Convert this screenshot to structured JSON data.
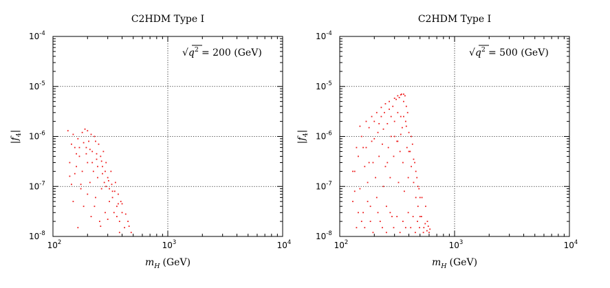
{
  "chart_data": [
    {
      "type": "scatter",
      "title": "C2HDM Type I",
      "xlabel": "m_H (GeV)",
      "xlabel_main": "m",
      "xlabel_sub": "H",
      "xlabel_unit": "(GeV)",
      "ylabel": "|f4|",
      "ylabel_main": "|f",
      "ylabel_sub": "4",
      "ylabel_close": "|",
      "annotation": "√q² = 200 (GeV)",
      "annotation_root": "√",
      "annotation_base": "q",
      "annotation_exp": "2",
      "annotation_rest": "= 200 (GeV)",
      "x_scale": "log",
      "y_scale": "log",
      "xlim": [
        100,
        10000
      ],
      "ylim": [
        1e-08,
        0.0001
      ],
      "grid": true,
      "point_color": "#ee1c1c",
      "x_ticks": [
        {
          "base": "10",
          "exp": "2",
          "value": 100
        },
        {
          "base": "10",
          "exp": "3",
          "value": 1000
        },
        {
          "base": "10",
          "exp": "4",
          "value": 10000
        }
      ],
      "y_ticks": [
        {
          "base": "10",
          "exp": "-8",
          "value": 1e-08
        },
        {
          "base": "10",
          "exp": "-7",
          "value": 1e-07
        },
        {
          "base": "10",
          "exp": "-6",
          "value": 1e-06
        },
        {
          "base": "10",
          "exp": "-5",
          "value": 1e-05
        },
        {
          "base": "10",
          "exp": "-4",
          "value": 0.0001
        }
      ],
      "points": [
        [
          135,
          1.3e-06
        ],
        [
          140,
          3e-07
        ],
        [
          145,
          1.1e-07
        ],
        [
          150,
          5e-08
        ],
        [
          155,
          6e-07
        ],
        [
          160,
          2.5e-07
        ],
        [
          165,
          1.5e-08
        ],
        [
          170,
          4e-07
        ],
        [
          175,
          9e-08
        ],
        [
          180,
          2e-07
        ],
        [
          185,
          4e-08
        ],
        [
          190,
          1.4e-06
        ],
        [
          195,
          6e-07
        ],
        [
          200,
          3e-07
        ],
        [
          205,
          8e-07
        ],
        [
          210,
          1.2e-07
        ],
        [
          215,
          2.5e-08
        ],
        [
          220,
          5e-07
        ],
        [
          225,
          2e-07
        ],
        [
          230,
          1e-06
        ],
        [
          235,
          6e-08
        ],
        [
          240,
          3.5e-07
        ],
        [
          245,
          1.5e-07
        ],
        [
          250,
          7e-07
        ],
        [
          255,
          2e-08
        ],
        [
          260,
          4e-07
        ],
        [
          265,
          9e-08
        ],
        [
          270,
          2.5e-07
        ],
        [
          275,
          5e-07
        ],
        [
          280,
          1.2e-07
        ],
        [
          285,
          3e-08
        ],
        [
          290,
          3e-07
        ],
        [
          300,
          1.5e-07
        ],
        [
          310,
          5e-08
        ],
        [
          320,
          2e-07
        ],
        [
          330,
          8e-08
        ],
        [
          340,
          3e-08
        ],
        [
          350,
          1.2e-07
        ],
        [
          360,
          4e-08
        ],
        [
          370,
          7e-08
        ],
        [
          380,
          2e-08
        ],
        [
          390,
          5e-08
        ],
        [
          400,
          3e-08
        ],
        [
          420,
          1.5e-08
        ],
        [
          450,
          2e-08
        ],
        [
          480,
          1.2e-08
        ],
        [
          150,
          1.1e-06
        ],
        [
          165,
          9e-07
        ],
        [
          180,
          1.2e-06
        ],
        [
          200,
          1.3e-06
        ],
        [
          215,
          1.1e-06
        ],
        [
          235,
          8e-07
        ],
        [
          155,
          1.8e-07
        ],
        [
          175,
          1.1e-07
        ],
        [
          200,
          7e-08
        ],
        [
          230,
          4e-08
        ],
        [
          260,
          1.6e-08
        ],
        [
          300,
          2.2e-08
        ],
        [
          145,
          7e-07
        ],
        [
          170,
          6e-07
        ],
        [
          195,
          4.5e-07
        ],
        [
          220,
          3e-07
        ],
        [
          245,
          2.5e-07
        ],
        [
          270,
          1.8e-07
        ],
        [
          290,
          1e-07
        ],
        [
          310,
          9e-08
        ],
        [
          330,
          6e-08
        ],
        [
          360,
          2.5e-08
        ],
        [
          380,
          1.2e-08
        ],
        [
          140,
          1.6e-07
        ],
        [
          160,
          4.5e-07
        ],
        [
          185,
          7.5e-07
        ],
        [
          210,
          5.5e-07
        ],
        [
          240,
          4.5e-07
        ],
        [
          265,
          3.2e-07
        ],
        [
          285,
          2e-07
        ],
        [
          305,
          1.3e-07
        ],
        [
          325,
          1.1e-07
        ],
        [
          345,
          8e-08
        ],
        [
          370,
          4.5e-08
        ],
        [
          400,
          4.5e-08
        ],
        [
          430,
          2.8e-08
        ],
        [
          460,
          1.6e-08
        ]
      ]
    },
    {
      "type": "scatter",
      "title": "C2HDM Type I",
      "xlabel": "m_H (GeV)",
      "xlabel_main": "m",
      "xlabel_sub": "H",
      "xlabel_unit": "(GeV)",
      "ylabel": "|f4|",
      "ylabel_main": "|f",
      "ylabel_sub": "4",
      "ylabel_close": "|",
      "annotation": "√q² = 500 (GeV)",
      "annotation_root": "√",
      "annotation_base": "q",
      "annotation_exp": "2",
      "annotation_rest": "= 500 (GeV)",
      "x_scale": "log",
      "y_scale": "log",
      "xlim": [
        100,
        10000
      ],
      "ylim": [
        1e-08,
        0.0001
      ],
      "grid": true,
      "point_color": "#ee1c1c",
      "x_ticks": [
        {
          "base": "10",
          "exp": "2",
          "value": 100
        },
        {
          "base": "10",
          "exp": "3",
          "value": 1000
        },
        {
          "base": "10",
          "exp": "4",
          "value": 10000
        }
      ],
      "y_ticks": [
        {
          "base": "10",
          "exp": "-8",
          "value": 1e-08
        },
        {
          "base": "10",
          "exp": "-7",
          "value": 1e-07
        },
        {
          "base": "10",
          "exp": "-6",
          "value": 1e-06
        },
        {
          "base": "10",
          "exp": "-5",
          "value": 1e-05
        },
        {
          "base": "10",
          "exp": "-4",
          "value": 0.0001
        }
      ],
      "points": [
        [
          130,
          5e-08
        ],
        [
          135,
          2e-07
        ],
        [
          140,
          1.5e-08
        ],
        [
          145,
          4e-07
        ],
        [
          150,
          9e-08
        ],
        [
          155,
          1e-06
        ],
        [
          160,
          3e-08
        ],
        [
          165,
          2.5e-07
        ],
        [
          170,
          6e-07
        ],
        [
          175,
          1.2e-07
        ],
        [
          180,
          1.5e-06
        ],
        [
          185,
          4e-08
        ],
        [
          190,
          8e-07
        ],
        [
          195,
          3e-07
        ],
        [
          200,
          2e-06
        ],
        [
          205,
          1.5e-07
        ],
        [
          210,
          6e-08
        ],
        [
          215,
          1.2e-06
        ],
        [
          220,
          4e-07
        ],
        [
          225,
          2e-08
        ],
        [
          230,
          2.5e-06
        ],
        [
          235,
          7e-07
        ],
        [
          240,
          1e-07
        ],
        [
          245,
          3e-06
        ],
        [
          250,
          2.5e-07
        ],
        [
          255,
          4e-08
        ],
        [
          260,
          1.8e-06
        ],
        [
          265,
          6e-07
        ],
        [
          270,
          3.5e-06
        ],
        [
          275,
          1.5e-07
        ],
        [
          280,
          1e-06
        ],
        [
          285,
          2.5e-08
        ],
        [
          290,
          4e-06
        ],
        [
          295,
          4e-07
        ],
        [
          300,
          2e-06
        ],
        [
          310,
          5.5e-06
        ],
        [
          315,
          8e-07
        ],
        [
          320,
          3e-06
        ],
        [
          325,
          1.2e-07
        ],
        [
          330,
          6e-06
        ],
        [
          335,
          5e-07
        ],
        [
          340,
          2.5e-06
        ],
        [
          345,
          7e-06
        ],
        [
          350,
          1.5e-06
        ],
        [
          355,
          3e-07
        ],
        [
          360,
          5e-06
        ],
        [
          365,
          8e-08
        ],
        [
          370,
          6.5e-06
        ],
        [
          375,
          2e-06
        ],
        [
          380,
          4e-06
        ],
        [
          385,
          6e-07
        ],
        [
          390,
          3e-06
        ],
        [
          395,
          1.5e-07
        ],
        [
          400,
          1.2e-06
        ],
        [
          410,
          5e-07
        ],
        [
          420,
          2.5e-07
        ],
        [
          430,
          7e-07
        ],
        [
          440,
          1.2e-07
        ],
        [
          450,
          3e-07
        ],
        [
          460,
          6e-08
        ],
        [
          470,
          1.5e-07
        ],
        [
          480,
          4e-08
        ],
        [
          490,
          9e-08
        ],
        [
          500,
          2.5e-08
        ],
        [
          520,
          6e-08
        ],
        [
          540,
          1.5e-08
        ],
        [
          560,
          4e-08
        ],
        [
          580,
          2e-08
        ],
        [
          600,
          1.2e-08
        ],
        [
          150,
          1.6e-06
        ],
        [
          170,
          2e-06
        ],
        [
          190,
          2.5e-06
        ],
        [
          210,
          3e-06
        ],
        [
          230,
          3.8e-06
        ],
        [
          250,
          4.5e-06
        ],
        [
          270,
          5e-06
        ],
        [
          300,
          5.8e-06
        ],
        [
          320,
          6.5e-06
        ],
        [
          340,
          6.8e-06
        ],
        [
          360,
          7e-06
        ],
        [
          140,
          6e-07
        ],
        [
          160,
          6e-07
        ],
        [
          180,
          3e-07
        ],
        [
          200,
          9e-07
        ],
        [
          220,
          1.8e-06
        ],
        [
          240,
          1.4e-06
        ],
        [
          260,
          3e-07
        ],
        [
          280,
          2.5e-06
        ],
        [
          300,
          1e-06
        ],
        [
          320,
          8e-07
        ],
        [
          340,
          1.1e-06
        ],
        [
          360,
          2.5e-06
        ],
        [
          380,
          1.6e-06
        ],
        [
          400,
          5e-07
        ],
        [
          420,
          1e-06
        ],
        [
          440,
          3.5e-07
        ],
        [
          460,
          2e-07
        ],
        [
          480,
          1e-07
        ],
        [
          500,
          6e-08
        ],
        [
          130,
          2e-07
        ],
        [
          135,
          8e-08
        ],
        [
          145,
          3e-08
        ],
        [
          155,
          2e-08
        ],
        [
          165,
          1.5e-08
        ],
        [
          175,
          5e-08
        ],
        [
          185,
          2e-08
        ],
        [
          195,
          1.2e-08
        ],
        [
          215,
          3e-08
        ],
        [
          235,
          1.5e-08
        ],
        [
          255,
          1.2e-08
        ],
        [
          275,
          3e-08
        ],
        [
          295,
          1.5e-08
        ],
        [
          315,
          2.5e-08
        ],
        [
          335,
          1.2e-08
        ],
        [
          355,
          2e-08
        ],
        [
          375,
          1.5e-08
        ],
        [
          395,
          3e-08
        ],
        [
          415,
          1.5e-08
        ],
        [
          435,
          2.5e-08
        ],
        [
          455,
          1.2e-08
        ],
        [
          475,
          2e-08
        ],
        [
          495,
          1.5e-08
        ],
        [
          515,
          2.5e-08
        ],
        [
          535,
          1.2e-08
        ],
        [
          555,
          1.8e-08
        ],
        [
          575,
          1.3e-08
        ],
        [
          590,
          1.6e-08
        ],
        [
          610,
          1.4e-08
        ]
      ]
    }
  ]
}
